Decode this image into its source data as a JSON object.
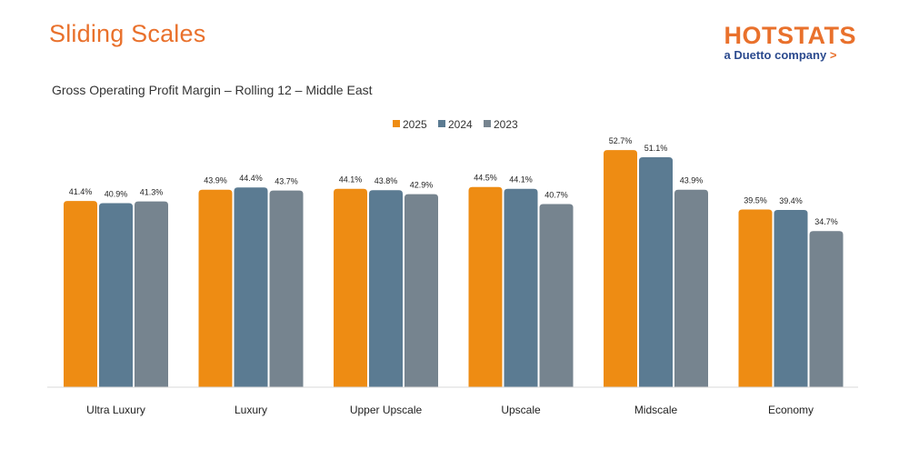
{
  "header": {
    "title": "Sliding Scales",
    "brand_name": "HOTSTATS",
    "brand_tagline": "a Duetto company",
    "brand_arrow": ">"
  },
  "colors": {
    "accent": "#e9712c",
    "brand_blue": "#2b4a8e",
    "series_2025": "#ee8c13",
    "series_2024": "#5b7b92",
    "series_2023": "#76848f"
  },
  "chart_data": {
    "type": "bar",
    "title": "Gross Operating Profit Margin – Rolling 12 – Middle East",
    "categories": [
      "Ultra Luxury",
      "Luxury",
      "Upper Upscale",
      "Upscale",
      "Midscale",
      "Economy"
    ],
    "series": [
      {
        "name": "2025",
        "color": "#ee8c13",
        "values": [
          41.4,
          43.9,
          44.1,
          44.5,
          52.7,
          39.5
        ],
        "labels": [
          "41.4%",
          "43.9%",
          "44.1%",
          "44.5%",
          "52.7%",
          "39.5%"
        ]
      },
      {
        "name": "2024",
        "color": "#5b7b92",
        "values": [
          40.9,
          44.4,
          43.8,
          44.1,
          51.1,
          39.4
        ],
        "labels": [
          "40.9%",
          "44.4%",
          "43.8%",
          "44.1%",
          "51.1%",
          "39.4%"
        ]
      },
      {
        "name": "2023",
        "color": "#76848f",
        "values": [
          41.3,
          43.7,
          42.9,
          40.7,
          43.9,
          34.7
        ],
        "labels": [
          "41.3%",
          "43.7%",
          "42.9%",
          "40.7%",
          "43.9%",
          "34.7%"
        ]
      }
    ],
    "ylim": [
      0,
      60
    ],
    "value_format": "percent",
    "grid": false,
    "legend_position": "top-center"
  }
}
